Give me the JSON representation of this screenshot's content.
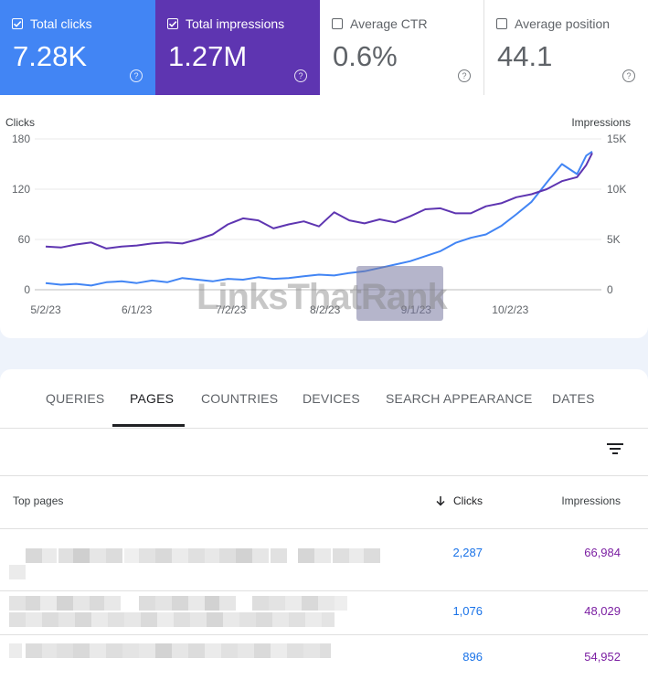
{
  "metrics": [
    {
      "label": "Total clicks",
      "value": "7.28K",
      "checked": true
    },
    {
      "label": "Total impressions",
      "value": "1.27M",
      "checked": true
    },
    {
      "label": "Average CTR",
      "value": "0.6%",
      "checked": false
    },
    {
      "label": "Average position",
      "value": "44.1",
      "checked": false
    }
  ],
  "help_glyph": "?",
  "watermark": "LinksThatRank",
  "chart_data": {
    "type": "line",
    "left_axis": {
      "label": "Clicks",
      "ticks": [
        "180",
        "120",
        "60",
        "0"
      ],
      "ylim": [
        0,
        180
      ]
    },
    "right_axis": {
      "label": "Impressions",
      "ticks": [
        "15K",
        "10K",
        "5K",
        "0"
      ],
      "ylim": [
        0,
        15000
      ]
    },
    "x_ticks": [
      "5/2/23",
      "6/1/23",
      "7/2/23",
      "8/2/23",
      "9/1/23",
      "10/2/23"
    ],
    "x_range_days": [
      0,
      180
    ],
    "colors": {
      "clicks": "#4285f4",
      "impressions": "#5e35b1"
    },
    "series": [
      {
        "name": "Clicks",
        "axis": "left",
        "x": [
          0,
          5,
          10,
          15,
          20,
          25,
          30,
          35,
          40,
          45,
          50,
          55,
          60,
          65,
          70,
          75,
          80,
          85,
          90,
          95,
          100,
          105,
          110,
          115,
          120,
          125,
          130,
          135,
          140,
          145,
          150,
          155,
          160,
          165,
          170,
          175,
          178,
          180
        ],
        "y": [
          8,
          6,
          7,
          5,
          9,
          10,
          8,
          11,
          9,
          14,
          12,
          10,
          13,
          12,
          15,
          13,
          14,
          16,
          18,
          17,
          20,
          22,
          26,
          30,
          34,
          40,
          46,
          56,
          62,
          66,
          76,
          90,
          105,
          128,
          150,
          138,
          160,
          165
        ]
      },
      {
        "name": "Impressions",
        "axis": "right",
        "x": [
          0,
          5,
          10,
          15,
          20,
          25,
          30,
          35,
          40,
          45,
          50,
          55,
          60,
          65,
          70,
          75,
          80,
          85,
          90,
          95,
          100,
          105,
          110,
          115,
          120,
          125,
          130,
          135,
          140,
          145,
          150,
          155,
          160,
          165,
          170,
          175,
          178,
          180
        ],
        "y": [
          4300,
          4200,
          4500,
          4700,
          4100,
          4300,
          4400,
          4600,
          4700,
          4600,
          5000,
          5500,
          6500,
          7100,
          6900,
          6100,
          6500,
          6800,
          6300,
          7700,
          6900,
          6600,
          7000,
          6700,
          7300,
          8000,
          8100,
          7600,
          7600,
          8300,
          8600,
          9200,
          9500,
          10000,
          10800,
          11200,
          12400,
          13600
        ]
      }
    ]
  },
  "tabs": [
    {
      "label": "QUERIES",
      "active": false
    },
    {
      "label": "PAGES",
      "active": true
    },
    {
      "label": "COUNTRIES",
      "active": false
    },
    {
      "label": "DEVICES",
      "active": false
    },
    {
      "label": "SEARCH APPEARANCE",
      "active": false
    },
    {
      "label": "DATES",
      "active": false
    }
  ],
  "filter_icon": "filter-icon",
  "table": {
    "columns": [
      "Top pages",
      "Clicks",
      "Impressions"
    ],
    "sort_column": "Clicks",
    "sort_direction": "descending",
    "rows": [
      {
        "clicks": "2,287",
        "impressions": "66,984"
      },
      {
        "clicks": "1,076",
        "impressions": "48,029"
      },
      {
        "clicks": "896",
        "impressions": "54,952"
      }
    ]
  }
}
